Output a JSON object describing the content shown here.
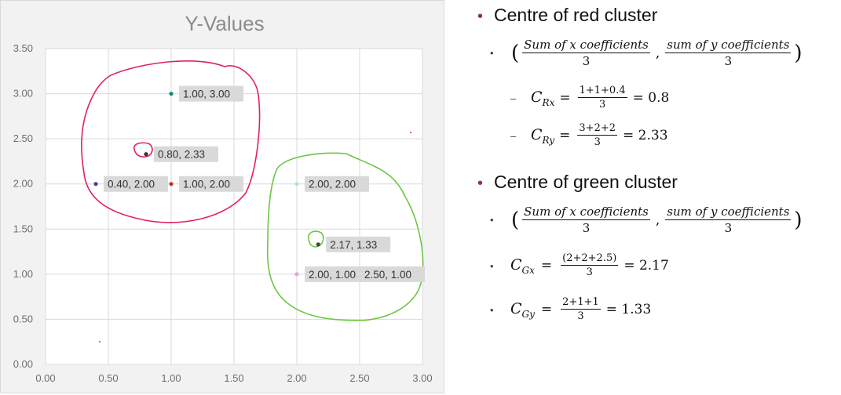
{
  "chart_data": {
    "type": "scatter",
    "title": "Y-Values",
    "xlim": [
      0,
      3
    ],
    "ylim": [
      0,
      3.5
    ],
    "grid": true,
    "x_ticks": [
      "0.00",
      "0.50",
      "1.00",
      "1.50",
      "2.00",
      "2.50",
      "3.00"
    ],
    "y_ticks": [
      "0.00",
      "0.50",
      "1.00",
      "1.50",
      "2.00",
      "2.50",
      "3.00",
      "3.50"
    ],
    "points": [
      {
        "x": 1.0,
        "y": 3.0,
        "color": "#138a78",
        "label": "1.00, 3.00"
      },
      {
        "x": 0.8,
        "y": 2.33,
        "color": "#333333",
        "label": "0.80, 2.33"
      },
      {
        "x": 0.4,
        "y": 2.0,
        "color": "#5b3a8e",
        "label": "0.40, 2.00"
      },
      {
        "x": 1.0,
        "y": 2.0,
        "color": "#c0392b",
        "label": "1.00, 2.00"
      },
      {
        "x": 2.0,
        "y": 2.0,
        "color": "#b8dfe0",
        "label": "2.00, 2.00"
      },
      {
        "x": 2.17,
        "y": 1.33,
        "color": "#444444",
        "label": "2.17, 1.33"
      },
      {
        "x": 2.0,
        "y": 1.0,
        "color": "#d9a6d9",
        "label": "2.00, 1.00"
      },
      {
        "x": 2.5,
        "y": 1.0,
        "color": "#dddddd",
        "label": "2.50, 1.00"
      }
    ],
    "annotation_colors": {
      "red_cluster": "#e0206a",
      "green_cluster": "#6cc644"
    }
  },
  "notes": {
    "red_heading": "Centre of red cluster",
    "green_heading": "Centre of green cluster",
    "bullet_mark": "•",
    "dash_mark": "–",
    "sum_x": "Sum of x coefficients",
    "sum_y": "sum of y coefficients",
    "denominator": "3",
    "comma": ",",
    "red_x_var": "C",
    "red_x_sub": "Rx",
    "red_x_num": "1+1+0.4",
    "red_x_result": "= 0.8",
    "red_y_var": "C",
    "red_y_sub": "Ry",
    "red_y_num": "3+2+2",
    "red_y_result": "=  2.33",
    "green_x_var": "C",
    "green_x_sub": "Gx",
    "green_x_num": "(2+2+2.5)",
    "green_x_result": "= 2.17",
    "green_y_var": "C",
    "green_y_sub": "Gy",
    "green_y_num": "2+1+1",
    "green_y_result": "=  1.33",
    "equals": "="
  }
}
